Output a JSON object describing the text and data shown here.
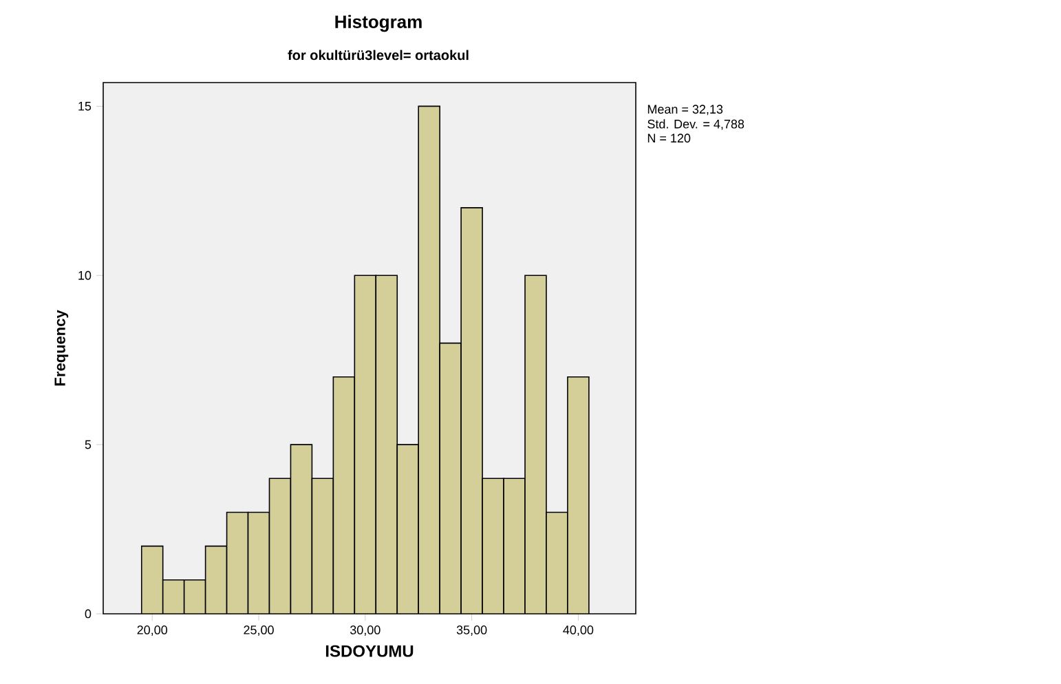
{
  "chart_data": {
    "type": "histogram",
    "title": "Histogram",
    "subtitle": "for okultürü3level= ortaokul",
    "xlabel": "ISDOYUMU",
    "ylabel": "Frequency",
    "bins": [
      19.5,
      20.5,
      21.5,
      22.5,
      23.5,
      24.5,
      25.5,
      26.5,
      27.5,
      28.5,
      29.5,
      30.5,
      31.5,
      32.5,
      33.5,
      34.5,
      35.5,
      36.5,
      37.5,
      38.5,
      39.5,
      40.5
    ],
    "values": [
      2,
      1,
      1,
      2,
      3,
      3,
      4,
      5,
      4,
      7,
      10,
      10,
      5,
      15,
      8,
      12,
      4,
      4,
      10,
      3,
      7
    ],
    "color": "#d4cf98",
    "xlim": [
      17.7,
      42.7
    ],
    "ylim": [
      0,
      15.7
    ],
    "xticks": [
      {
        "value": 20,
        "label": "20,00"
      },
      {
        "value": 25,
        "label": "25,00"
      },
      {
        "value": 30,
        "label": "30,00"
      },
      {
        "value": 35,
        "label": "35,00"
      },
      {
        "value": 40,
        "label": "40,00"
      }
    ],
    "yticks": [
      0,
      5,
      10,
      15
    ],
    "grid": false,
    "annotations": [
      "Mean = 32,13",
      "Std. Dev. = 4,788",
      "N = 120"
    ]
  }
}
